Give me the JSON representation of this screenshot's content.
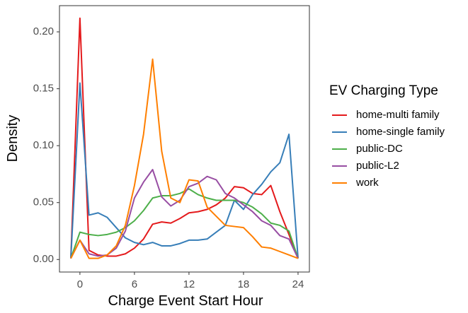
{
  "chart_data": {
    "type": "line",
    "xlabel": "Charge Event Start Hour",
    "ylabel": "Density",
    "legend_title": "EV Charging Type",
    "legend": "right",
    "x": [
      -1,
      0,
      1,
      2,
      3,
      4,
      5,
      6,
      7,
      8,
      9,
      10,
      11,
      12,
      13,
      14,
      15,
      16,
      17,
      18,
      19,
      20,
      21,
      22,
      23,
      24
    ],
    "xlim": [
      -2.25,
      25.25
    ],
    "xticks": [
      0,
      6,
      12,
      18,
      24
    ],
    "ylim": [
      -0.011,
      0.223
    ],
    "yticks": [
      {
        "value": 0,
        "label": "0.00"
      },
      {
        "value": 0.05,
        "label": "0.05"
      },
      {
        "value": 0.1,
        "label": "0.10"
      },
      {
        "value": 0.15,
        "label": "0.15"
      },
      {
        "value": 0.2,
        "label": "0.20"
      }
    ],
    "series": [
      {
        "name": "home-multi family",
        "color": "#e41a1c",
        "values": [
          0.001,
          0.212,
          0.008,
          0.004,
          0.003,
          0.003,
          0.005,
          0.01,
          0.018,
          0.031,
          0.033,
          0.032,
          0.036,
          0.041,
          0.042,
          0.044,
          0.048,
          0.054,
          0.064,
          0.063,
          0.058,
          0.057,
          0.065,
          0.042,
          0.022,
          0.001
        ]
      },
      {
        "name": "home-single family",
        "color": "#377eb8",
        "values": [
          0.001,
          0.155,
          0.039,
          0.041,
          0.037,
          0.028,
          0.019,
          0.015,
          0.013,
          0.015,
          0.012,
          0.012,
          0.014,
          0.017,
          0.017,
          0.018,
          0.024,
          0.03,
          0.052,
          0.044,
          0.057,
          0.066,
          0.077,
          0.085,
          0.11,
          0.001
        ]
      },
      {
        "name": "public-DC",
        "color": "#4daf4a",
        "values": [
          0.001,
          0.024,
          0.022,
          0.021,
          0.022,
          0.024,
          0.028,
          0.034,
          0.043,
          0.054,
          0.056,
          0.056,
          0.058,
          0.062,
          0.057,
          0.054,
          0.052,
          0.052,
          0.052,
          0.05,
          0.046,
          0.04,
          0.032,
          0.03,
          0.025,
          0.001
        ]
      },
      {
        "name": "public-L2",
        "color": "#984ea3",
        "values": [
          0.001,
          0.017,
          0.005,
          0.003,
          0.004,
          0.01,
          0.025,
          0.054,
          0.068,
          0.079,
          0.055,
          0.047,
          0.052,
          0.064,
          0.067,
          0.073,
          0.07,
          0.058,
          0.054,
          0.048,
          0.042,
          0.034,
          0.03,
          0.021,
          0.018,
          0.001
        ]
      },
      {
        "name": "work",
        "color": "#ff7f00",
        "values": [
          0.001,
          0.017,
          0.001,
          0.001,
          0.004,
          0.012,
          0.03,
          0.065,
          0.11,
          0.176,
          0.095,
          0.054,
          0.05,
          0.07,
          0.069,
          0.046,
          0.038,
          0.03,
          0.029,
          0.028,
          0.02,
          0.011,
          0.01,
          0.007,
          0.004,
          0.001
        ]
      }
    ]
  }
}
